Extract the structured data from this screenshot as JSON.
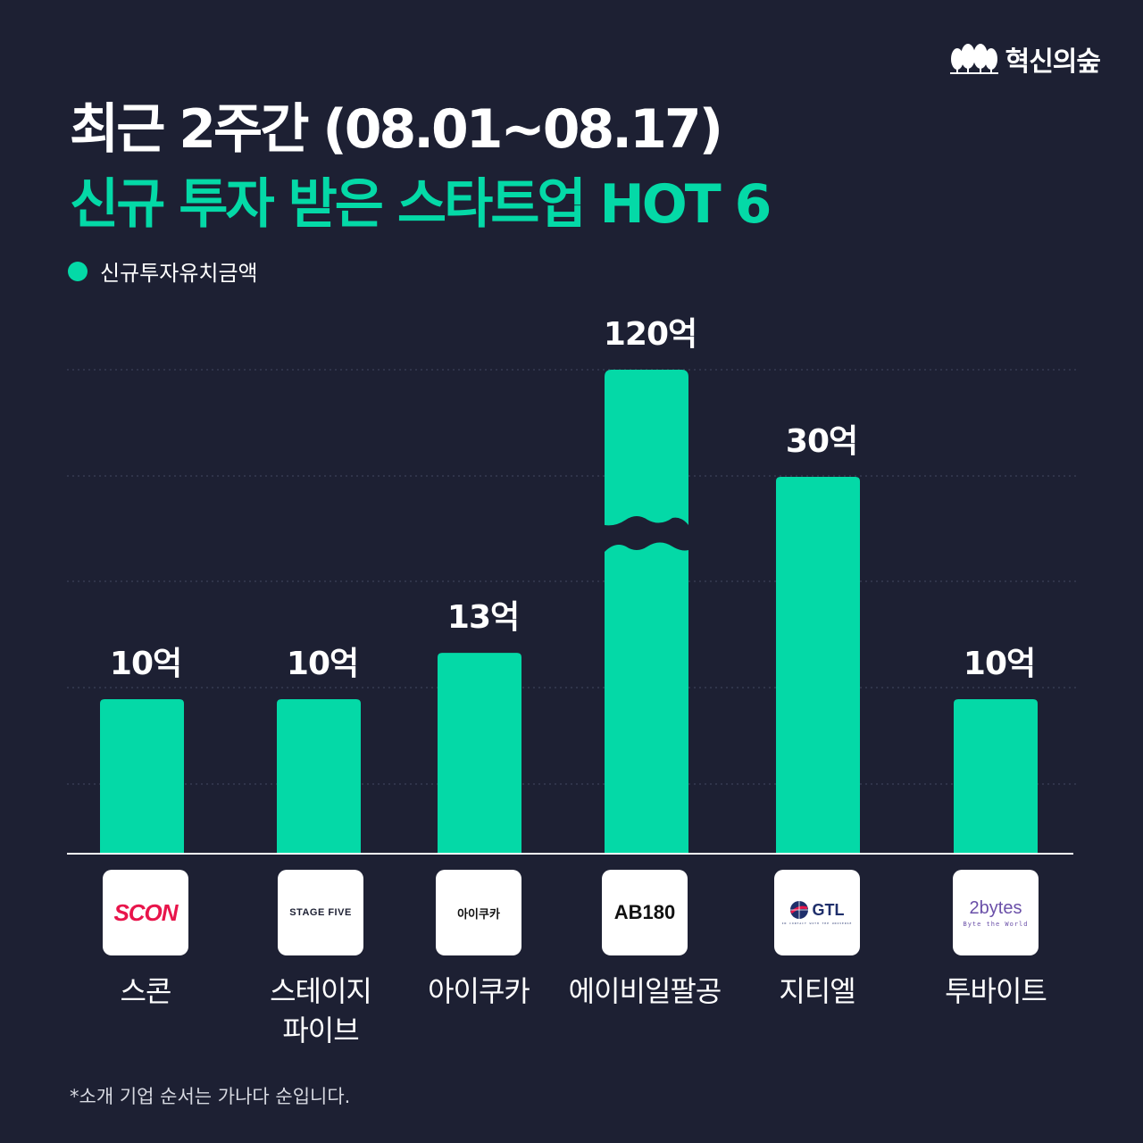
{
  "brand": {
    "name": "혁신의숲",
    "icon": "forest-trees-icon"
  },
  "title": {
    "line1": "최근 2주간 (08.01~08.17)",
    "line2": "신규 투자 받은 스타트업 HOT 6"
  },
  "colors": {
    "background": "#1d2033",
    "accent": "#04d9a7",
    "text": "#ffffff"
  },
  "chart_data": {
    "type": "bar",
    "legend": "신규투자유치금액",
    "legend_position": "top-left",
    "grid": true,
    "broken_axis_categories": [
      "에이비일팔공"
    ],
    "categories": [
      "스콘",
      "스테이지 파이브",
      "아이쿠카",
      "에이비일팔공",
      "지티엘",
      "투바이트"
    ],
    "values": [
      10,
      10,
      13,
      120,
      30,
      10
    ],
    "value_labels": [
      "10억",
      "10억",
      "13억",
      "120억",
      "30억",
      "10억"
    ],
    "unit": "억"
  },
  "companies": [
    {
      "name_lines": [
        "스콘"
      ],
      "logo_text": "SCON",
      "logo_color": "#e8154b"
    },
    {
      "name_lines": [
        "스테이지",
        "파이브"
      ],
      "logo_text": "STAGE FIVE",
      "logo_color": "#1d2033"
    },
    {
      "name_lines": [
        "아이쿠카"
      ],
      "logo_text": "아이쿠카",
      "logo_color": "#111111"
    },
    {
      "name_lines": [
        "에이비일팔공"
      ],
      "logo_text": "AB180",
      "logo_color": "#111111"
    },
    {
      "name_lines": [
        "지티엘"
      ],
      "logo_text": "GTL",
      "logo_subtext": "IN CONTACT WITH THE UNIVERSE",
      "logo_color": "#1f2f6b"
    },
    {
      "name_lines": [
        "투바이트"
      ],
      "logo_text": "2bytes",
      "logo_subtext": "Byte the World",
      "logo_color": "#6a4fa8"
    }
  ],
  "footnote": "*소개 기업 순서는 가나다 순입니다."
}
